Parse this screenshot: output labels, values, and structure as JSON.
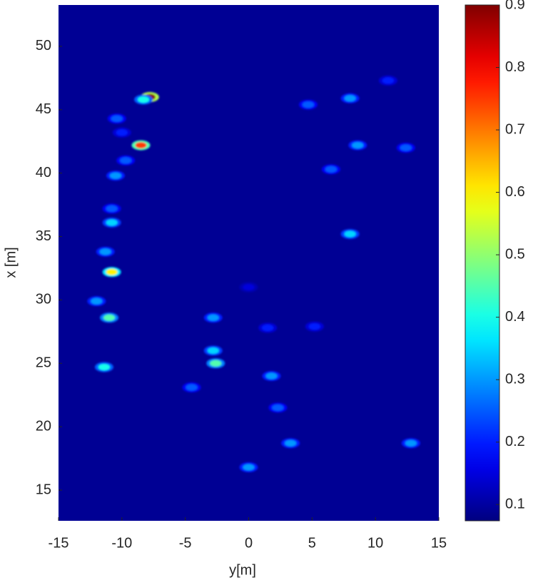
{
  "chart_data": {
    "type": "heatmap",
    "xlabel": "y[m]",
    "ylabel": "x [m]",
    "xlim": [
      -15,
      15
    ],
    "ylim": [
      12.58,
      53.26
    ],
    "xticks": [
      -15,
      -10,
      -5,
      0,
      5,
      10,
      15
    ],
    "yticks": [
      15,
      20,
      25,
      30,
      35,
      40,
      45,
      50
    ],
    "clim": [
      0.074,
      0.9
    ],
    "cticks": [
      0.1,
      0.2,
      0.3,
      0.4,
      0.5,
      0.6,
      0.7,
      0.8,
      0.9
    ],
    "colormap": "jet",
    "x": [
      -7.8,
      -8.3,
      -8.5,
      -10.4,
      -10,
      -9.7,
      -10.5,
      -10.8,
      -10.8,
      -11.3,
      -10.8,
      -12.0,
      -11.0,
      -11.4,
      -2.6,
      -2.8,
      -4.5,
      1.8,
      2.3,
      3.3,
      4.7,
      8.0,
      8.6,
      12.4,
      6.5,
      8.0,
      0.0,
      -2.8,
      12.8,
      11.0,
      0,
      1.5,
      5.2
    ],
    "y": [
      46.0,
      45.8,
      42.2,
      44.3,
      43.2,
      41.0,
      39.8,
      37.2,
      36.1,
      33.8,
      32.2,
      29.9,
      28.6,
      24.7,
      25.0,
      26.0,
      23.1,
      24.0,
      21.5,
      18.7,
      45.4,
      45.9,
      42.2,
      42.0,
      40.3,
      35.2,
      16.8,
      28.6,
      18.7,
      47.3,
      31.0,
      27.8,
      27.9
    ],
    "values": [
      0.9,
      0.4,
      0.75,
      0.25,
      0.2,
      0.25,
      0.3,
      0.25,
      0.35,
      0.3,
      0.6,
      0.3,
      0.45,
      0.4,
      0.45,
      0.35,
      0.25,
      0.3,
      0.25,
      0.3,
      0.25,
      0.3,
      0.3,
      0.25,
      0.25,
      0.35,
      0.3,
      0.3,
      0.3,
      0.2,
      0.15,
      0.2,
      0.2
    ]
  }
}
